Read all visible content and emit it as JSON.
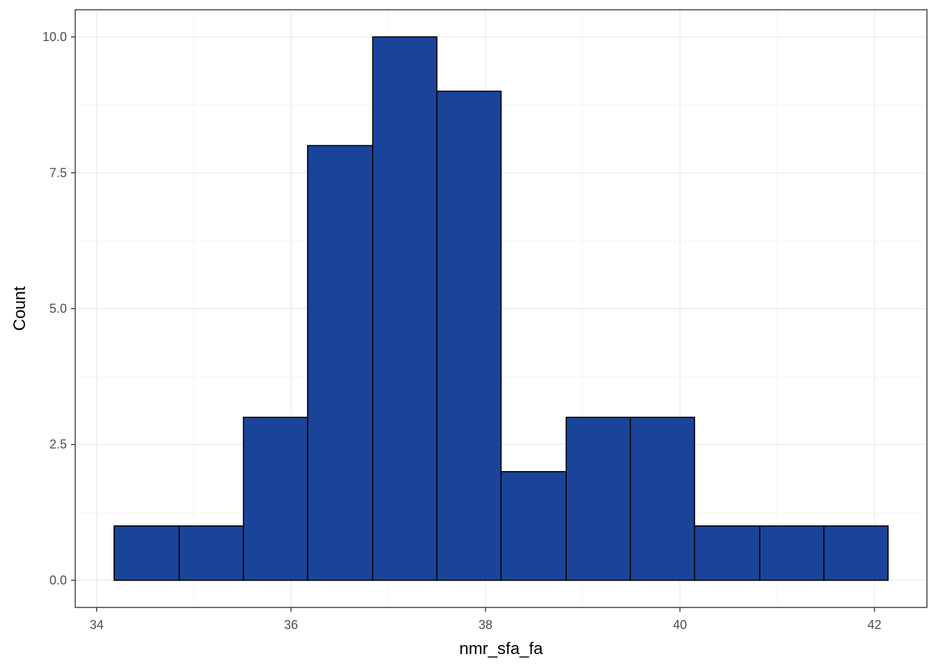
{
  "chart_data": {
    "type": "bar",
    "subtype": "histogram",
    "title": "",
    "xlabel": "nmr_sfa_fa",
    "ylabel": "Count",
    "bins": [
      {
        "x0": 34.18,
        "x1": 34.85,
        "count": 1
      },
      {
        "x0": 34.85,
        "x1": 35.51,
        "count": 1
      },
      {
        "x0": 35.51,
        "x1": 36.17,
        "count": 3
      },
      {
        "x0": 36.17,
        "x1": 36.84,
        "count": 8
      },
      {
        "x0": 36.84,
        "x1": 37.5,
        "count": 10
      },
      {
        "x0": 37.5,
        "x1": 38.16,
        "count": 9
      },
      {
        "x0": 38.16,
        "x1": 38.83,
        "count": 2
      },
      {
        "x0": 38.83,
        "x1": 39.49,
        "count": 3
      },
      {
        "x0": 39.49,
        "x1": 40.15,
        "count": 3
      },
      {
        "x0": 40.15,
        "x1": 40.82,
        "count": 1
      },
      {
        "x0": 40.82,
        "x1": 41.48,
        "count": 1
      },
      {
        "x0": 41.48,
        "x1": 42.14,
        "count": 1
      }
    ],
    "xlim": [
      33.78,
      42.54
    ],
    "ylim": [
      -0.5,
      10.5
    ],
    "x_ticks": [
      34,
      36,
      38,
      40,
      42
    ],
    "x_tick_labels": [
      "34",
      "36",
      "38",
      "40",
      "42"
    ],
    "y_ticks": [
      0,
      2.5,
      5,
      7.5,
      10
    ],
    "y_tick_labels": [
      "0.0",
      "2.5",
      "5.0",
      "7.5",
      "10.0"
    ],
    "grid": true,
    "legend": "none",
    "colors": {
      "bar_fill": "#1A4499",
      "bar_stroke": "#000000",
      "grid_major": "#EBEBEB",
      "grid_minor": "#F5F5F5",
      "panel_border": "#333333",
      "tick_text": "#4D4D4D"
    }
  }
}
